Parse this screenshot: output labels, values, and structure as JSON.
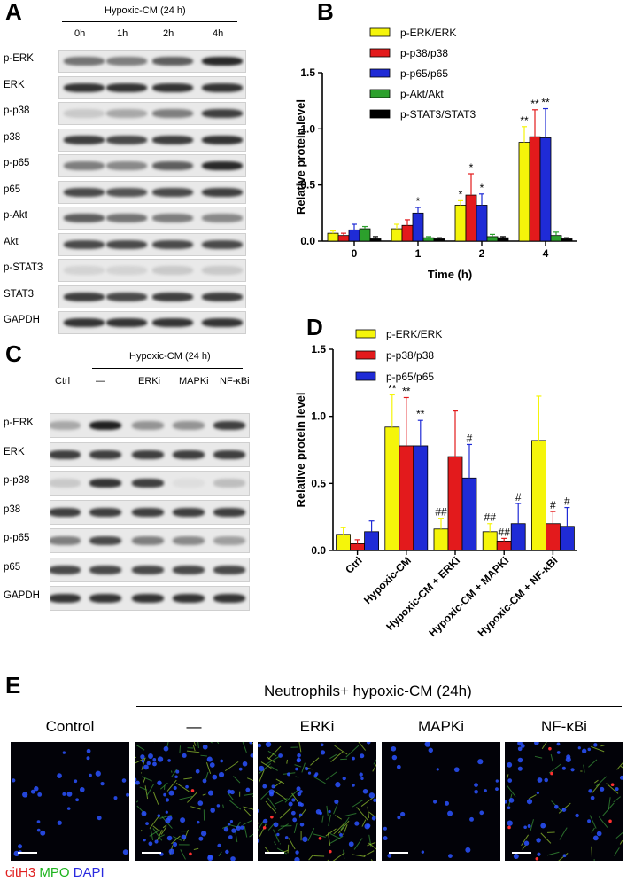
{
  "panelA": {
    "letter": "A",
    "header": "Hypoxic-CM (24 h)",
    "lanes": [
      "0h",
      "1h",
      "2h",
      "4h"
    ],
    "rows": [
      "p-ERK",
      "ERK",
      "p-p38",
      "p38",
      "p-p65",
      "p65",
      "p-Akt",
      "Akt",
      "p-STAT3",
      "STAT3",
      "GAPDH"
    ]
  },
  "panelC": {
    "letter": "C",
    "header": "Hypoxic-CM (24 h)",
    "lanes": [
      "Ctrl",
      "—",
      "ERKi",
      "MAPKi",
      "NF-κBi"
    ],
    "rows": [
      "p-ERK",
      "ERK",
      "p-p38",
      "p38",
      "p-p65",
      "p65",
      "GAPDH"
    ]
  },
  "panelB": {
    "letter": "B",
    "ylabel": "Relative protein level",
    "xlabel": "Time (h)",
    "legend": [
      "p-ERK/ERK",
      "p-p38/p38",
      "p-p65/p65",
      "p-Akt/Akt",
      "p-STAT3/STAT3"
    ]
  },
  "panelD": {
    "letter": "D",
    "ylabel": "Relative protein level",
    "legend": [
      "p-ERK/ERK",
      "p-p38/p38",
      "p-p65/p65"
    ]
  },
  "panelE": {
    "letter": "E",
    "header": "Neutrophils+ hypoxic-CM (24h)",
    "titles": [
      "Control",
      "—",
      "ERKi",
      "MAPKi",
      "NF-κBi"
    ],
    "stain_label_1": "citH3",
    "stain_label_2": "MPO",
    "stain_label_3": "DAPI"
  },
  "colors": {
    "yellow": "#f5f50a",
    "red": "#e31a1c",
    "blue": "#1f2bd6",
    "green": "#2ca02c",
    "black": "#000000"
  },
  "chart_data": [
    {
      "type": "bar",
      "categories": [
        "0",
        "1",
        "2",
        "4"
      ],
      "xlabel": "Time (h)",
      "ylabel": "Relative protein level",
      "ylim": [
        0,
        1.5
      ],
      "yticks": [
        "0.0",
        "0.5",
        "1.0",
        "1.5"
      ],
      "series": [
        {
          "name": "p-ERK/ERK",
          "color": "#f5f50a",
          "values": [
            0.07,
            0.11,
            0.32,
            0.88
          ],
          "errors": [
            0.02,
            0.04,
            0.04,
            0.14
          ],
          "annotations": [
            "",
            "",
            "*",
            "**"
          ]
        },
        {
          "name": "p-p38/p38",
          "color": "#e31a1c",
          "values": [
            0.05,
            0.14,
            0.41,
            0.93
          ],
          "errors": [
            0.02,
            0.05,
            0.19,
            0.24
          ],
          "annotations": [
            "",
            "",
            "*",
            "**"
          ]
        },
        {
          "name": "p-p65/p65",
          "color": "#1f2bd6",
          "values": [
            0.1,
            0.25,
            0.32,
            0.92
          ],
          "errors": [
            0.05,
            0.05,
            0.1,
            0.26
          ],
          "annotations": [
            "",
            "*",
            "*",
            "**"
          ]
        },
        {
          "name": "p-Akt/Akt",
          "color": "#2ca02c",
          "values": [
            0.11,
            0.03,
            0.04,
            0.05
          ],
          "errors": [
            0.02,
            0.01,
            0.02,
            0.03
          ],
          "annotations": [
            "",
            "",
            "",
            ""
          ]
        },
        {
          "name": "p-STAT3/STAT3",
          "color": "#000000",
          "values": [
            0.02,
            0.02,
            0.03,
            0.02
          ],
          "errors": [
            0.02,
            0.01,
            0.01,
            0.01
          ],
          "annotations": [
            "",
            "",
            "",
            ""
          ]
        }
      ]
    },
    {
      "type": "bar",
      "categories": [
        "Ctrl",
        "Hypoxic-CM",
        "Hypoxic-CM + ERKi",
        "Hypoxic-CM + MAPKi",
        "Hypoxic-CM + NF-κBi"
      ],
      "ylabel": "Relative protein level",
      "ylim": [
        0,
        1.5
      ],
      "yticks": [
        "0.0",
        "0.5",
        "1.0",
        "1.5"
      ],
      "series": [
        {
          "name": "p-ERK/ERK",
          "color": "#f5f50a",
          "values": [
            0.12,
            0.92,
            0.16,
            0.14,
            0.82
          ],
          "errors": [
            0.05,
            0.24,
            0.08,
            0.06,
            0.33
          ],
          "annotations": [
            "",
            "**",
            "##",
            "##",
            ""
          ]
        },
        {
          "name": "p-p38/p38",
          "color": "#e31a1c",
          "values": [
            0.05,
            0.78,
            0.7,
            0.07,
            0.2
          ],
          "errors": [
            0.03,
            0.36,
            0.34,
            0.02,
            0.09
          ],
          "annotations": [
            "",
            "**",
            "",
            "##",
            "#"
          ]
        },
        {
          "name": "p-p65/p65",
          "color": "#1f2bd6",
          "values": [
            0.14,
            0.78,
            0.54,
            0.2,
            0.18
          ],
          "errors": [
            0.08,
            0.19,
            0.25,
            0.15,
            0.14
          ],
          "annotations": [
            "",
            "**",
            "#",
            "#",
            "#"
          ]
        }
      ]
    }
  ]
}
